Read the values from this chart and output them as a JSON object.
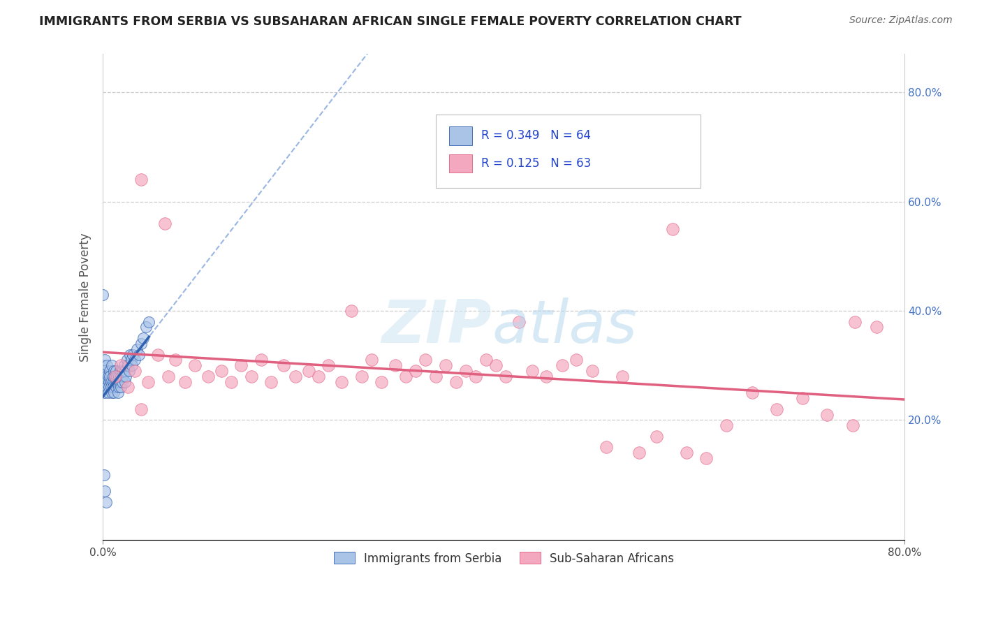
{
  "title": "IMMIGRANTS FROM SERBIA VS SUBSAHARAN AFRICAN SINGLE FEMALE POVERTY CORRELATION CHART",
  "source": "Source: ZipAtlas.com",
  "ylabel": "Single Female Poverty",
  "legend_label1": "Immigrants from Serbia",
  "legend_label2": "Sub-Saharan Africans",
  "r1": 0.349,
  "n1": 64,
  "r2": 0.125,
  "n2": 63,
  "xlim": [
    0.0,
    0.8
  ],
  "ylim": [
    -0.02,
    0.87
  ],
  "color_serbia": "#aac4e8",
  "color_subsaharan": "#f4a8c0",
  "color_serbia_line": "#3060b0",
  "color_subsaharan_line": "#e06080",
  "color_dashed": "#88aadd",
  "watermark_zip": "#cce0f0",
  "watermark_atlas": "#b8d8f0",
  "serbia_x": [
    0.0,
    0.0,
    0.001,
    0.001,
    0.002,
    0.002,
    0.003,
    0.003,
    0.004,
    0.004,
    0.005,
    0.005,
    0.006,
    0.006,
    0.007,
    0.007,
    0.008,
    0.008,
    0.009,
    0.009,
    0.01,
    0.01,
    0.01,
    0.011,
    0.011,
    0.012,
    0.012,
    0.013,
    0.013,
    0.014,
    0.014,
    0.015,
    0.015,
    0.016,
    0.016,
    0.017,
    0.017,
    0.018,
    0.018,
    0.019,
    0.019,
    0.02,
    0.021,
    0.022,
    0.022,
    0.023,
    0.024,
    0.025,
    0.026,
    0.027,
    0.028,
    0.029,
    0.03,
    0.032,
    0.034,
    0.036,
    0.038,
    0.04,
    0.043,
    0.046,
    0.0,
    0.001,
    0.002,
    0.003
  ],
  "serbia_y": [
    0.27,
    0.3,
    0.26,
    0.29,
    0.25,
    0.31,
    0.28,
    0.27,
    0.26,
    0.3,
    0.25,
    0.28,
    0.27,
    0.26,
    0.29,
    0.28,
    0.27,
    0.26,
    0.3,
    0.25,
    0.27,
    0.28,
    0.26,
    0.29,
    0.25,
    0.28,
    0.27,
    0.26,
    0.29,
    0.27,
    0.28,
    0.25,
    0.27,
    0.26,
    0.28,
    0.27,
    0.29,
    0.28,
    0.26,
    0.27,
    0.29,
    0.28,
    0.3,
    0.27,
    0.29,
    0.28,
    0.31,
    0.3,
    0.29,
    0.32,
    0.31,
    0.3,
    0.32,
    0.31,
    0.33,
    0.32,
    0.34,
    0.35,
    0.37,
    0.38,
    0.43,
    0.1,
    0.07,
    0.05
  ],
  "subsaharan_x": [
    0.012,
    0.018,
    0.025,
    0.032,
    0.038,
    0.045,
    0.055,
    0.065,
    0.072,
    0.082,
    0.092,
    0.105,
    0.118,
    0.128,
    0.138,
    0.148,
    0.158,
    0.168,
    0.18,
    0.192,
    0.205,
    0.215,
    0.225,
    0.238,
    0.248,
    0.258,
    0.268,
    0.278,
    0.292,
    0.302,
    0.312,
    0.322,
    0.332,
    0.342,
    0.352,
    0.362,
    0.372,
    0.382,
    0.392,
    0.402,
    0.415,
    0.428,
    0.442,
    0.458,
    0.472,
    0.488,
    0.502,
    0.518,
    0.535,
    0.552,
    0.568,
    0.582,
    0.602,
    0.622,
    0.648,
    0.672,
    0.698,
    0.722,
    0.748,
    0.772,
    0.038,
    0.062,
    0.75
  ],
  "subsaharan_y": [
    0.28,
    0.3,
    0.26,
    0.29,
    0.64,
    0.27,
    0.32,
    0.28,
    0.31,
    0.27,
    0.3,
    0.28,
    0.29,
    0.27,
    0.3,
    0.28,
    0.31,
    0.27,
    0.3,
    0.28,
    0.29,
    0.28,
    0.3,
    0.27,
    0.4,
    0.28,
    0.31,
    0.27,
    0.3,
    0.28,
    0.29,
    0.31,
    0.28,
    0.3,
    0.27,
    0.29,
    0.28,
    0.31,
    0.3,
    0.28,
    0.38,
    0.29,
    0.28,
    0.3,
    0.31,
    0.29,
    0.15,
    0.28,
    0.14,
    0.17,
    0.55,
    0.14,
    0.13,
    0.19,
    0.25,
    0.22,
    0.24,
    0.21,
    0.19,
    0.37,
    0.22,
    0.56,
    0.38
  ]
}
